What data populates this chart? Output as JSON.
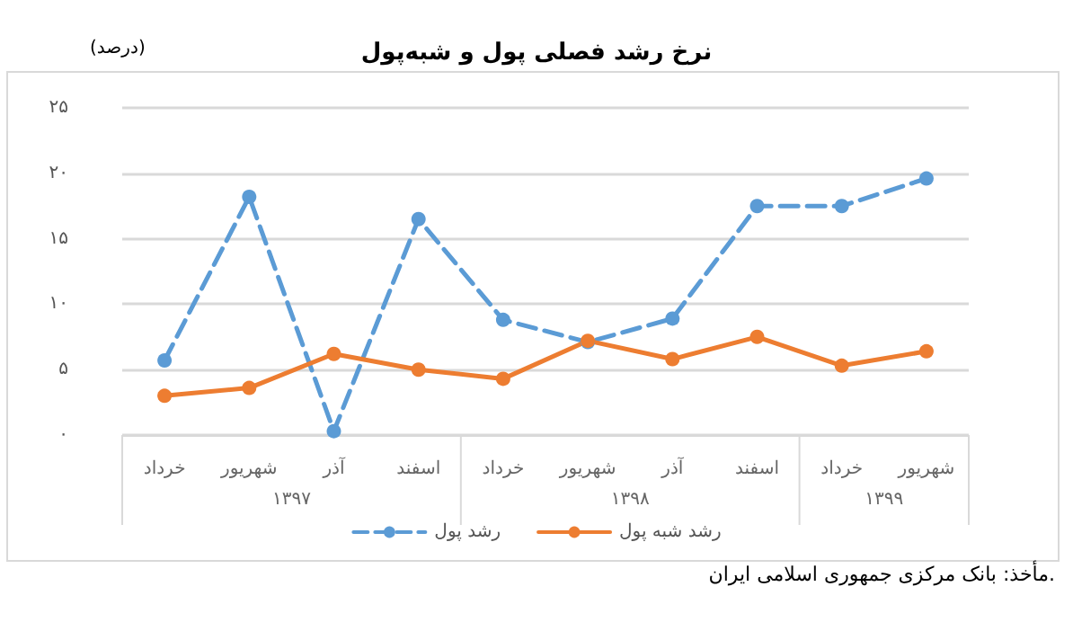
{
  "chart_data": {
    "type": "line",
    "title": "نرخ رشد فصلی پول و شبه‌پول",
    "ylabel": "(درصد)",
    "categories": [
      "خرداد",
      "شهریور",
      "آذر",
      "اسفند",
      "خرداد",
      "شهریور",
      "آذر",
      "اسفند",
      "خرداد",
      "شهریور"
    ],
    "series": [
      {
        "name": "رشد پول",
        "color": "#5b9bd5",
        "line_style": "dashed",
        "values": [
          5.7,
          18.2,
          0.3,
          16.5,
          8.8,
          7.1,
          8.9,
          17.5,
          17.5,
          19.6
        ]
      },
      {
        "name": "رشد شبه پول",
        "color": "#ed7d31",
        "line_style": "solid",
        "values": [
          3.0,
          3.6,
          6.2,
          5.0,
          4.3,
          7.2,
          5.8,
          7.5,
          5.3,
          6.4
        ]
      }
    ],
    "ylim": [
      0,
      25
    ],
    "yticks": [
      {
        "value": 0,
        "label": "۰"
      },
      {
        "value": 5,
        "label": "۵"
      },
      {
        "value": 10,
        "label": "۱۰"
      },
      {
        "value": 15,
        "label": "۱۵"
      },
      {
        "value": 20,
        "label": "۲۰"
      },
      {
        "value": 25,
        "label": "۲۵"
      }
    ],
    "grid": "y",
    "legend": "bottom",
    "marker": "circle",
    "annotations": [
      "۱۳۹۷",
      "۱۳۹۸",
      "۱۳۹۹",
      "مأخذ: بانک مرکزی جمهوری اسلامی ایران."
    ]
  }
}
